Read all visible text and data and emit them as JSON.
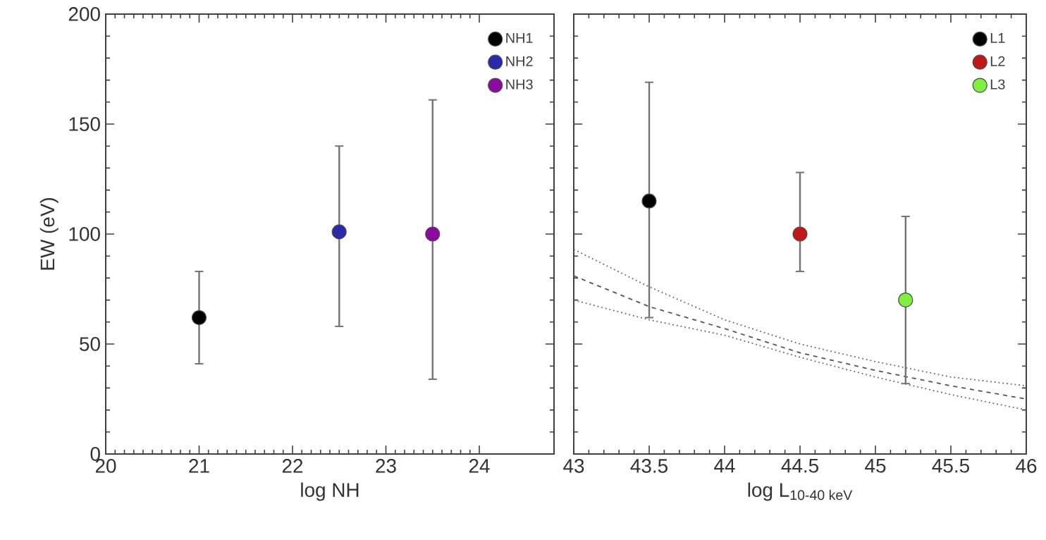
{
  "chart_data": [
    {
      "type": "scatter",
      "xlabel": "log NH",
      "ylabel": "EW (eV)",
      "xlim": [
        20,
        24.8
      ],
      "ylim": [
        0,
        200
      ],
      "xticks": [
        20,
        21,
        22,
        23,
        24
      ],
      "yticks": [
        0,
        50,
        100,
        150,
        200
      ],
      "legend": "top right",
      "marker": "circle",
      "series": [
        {
          "name": "NH1",
          "color": "#000000",
          "x": [
            21
          ],
          "values": [
            62
          ],
          "errors": [
            [
              41,
              83
            ]
          ]
        },
        {
          "name": "NH2",
          "color": "#2a2aa8",
          "x": [
            22.5
          ],
          "values": [
            101
          ],
          "errors": [
            [
              58,
              140
            ]
          ]
        },
        {
          "name": "NH3",
          "color": "#8b0aa0",
          "x": [
            23.5
          ],
          "values": [
            100
          ],
          "errors": [
            [
              34,
              161
            ]
          ]
        }
      ]
    },
    {
      "type": "scatter",
      "xlabel": "log L$_{10-40 keV}$",
      "xlim": [
        43,
        46
      ],
      "ylim": [
        0,
        200
      ],
      "xticks": [
        43,
        43.5,
        44,
        44.5,
        45,
        45.5,
        46
      ],
      "yticks": [
        0,
        50,
        100,
        150,
        200
      ],
      "tick_labels": "x",
      "legend": "top right",
      "marker": "circle",
      "series": [
        {
          "type": "line",
          "line_style": "dotted",
          "marker": "none",
          "color": "#666666",
          "x": [
            43,
            43.5,
            44,
            44.5,
            45,
            45.5,
            46
          ],
          "values": [
            93,
            76,
            61,
            50,
            42,
            35,
            31
          ]
        },
        {
          "type": "line",
          "line_style": "dashed",
          "marker": "none",
          "color": "#555555",
          "x": [
            43,
            43.5,
            44,
            44.5,
            45,
            45.5,
            46
          ],
          "values": [
            81,
            67,
            57,
            46,
            38,
            31,
            25
          ]
        },
        {
          "type": "line",
          "line_style": "dotted",
          "marker": "none",
          "color": "#666666",
          "x": [
            43,
            43.5,
            44,
            44.5,
            45,
            45.5,
            46
          ],
          "values": [
            70,
            61,
            54,
            44,
            35,
            27,
            20
          ]
        },
        {
          "name": "L1",
          "color": "#000000",
          "x": [
            43.5
          ],
          "values": [
            115
          ],
          "errors": [
            [
              62,
              169
            ]
          ]
        },
        {
          "name": "L2",
          "color": "#c01818",
          "x": [
            44.5
          ],
          "values": [
            100
          ],
          "errors": [
            [
              83,
              128
            ]
          ]
        },
        {
          "name": "L3",
          "color": "#80f040",
          "x": [
            45.2
          ],
          "values": [
            70
          ],
          "errors": [
            [
              32,
              108
            ]
          ]
        }
      ]
    }
  ]
}
